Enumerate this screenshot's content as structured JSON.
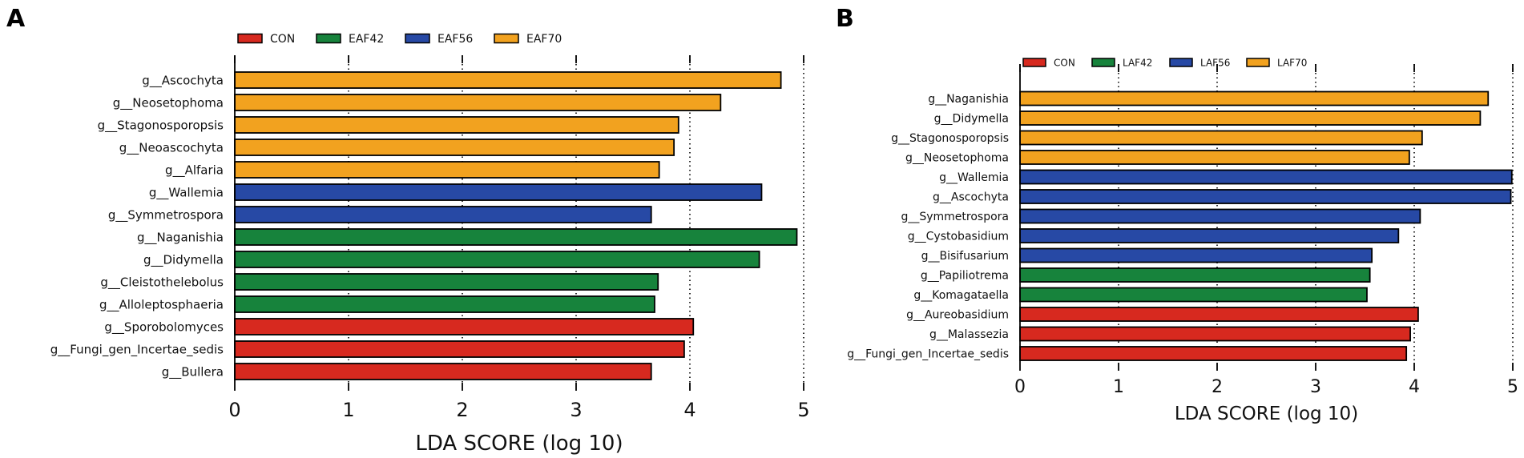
{
  "chart_data": [
    {
      "panel": "A",
      "type": "bar",
      "orientation": "horizontal",
      "xlabel": "LDA SCORE (log 10)",
      "xlim": [
        0,
        5
      ],
      "xticks": [
        0,
        1,
        2,
        3,
        4,
        5
      ],
      "grid": "vertical dotted",
      "legend": [
        {
          "name": "CON",
          "color": "#d7291f"
        },
        {
          "name": "EAF42",
          "color": "#17833c"
        },
        {
          "name": "EAF56",
          "color": "#2749a5"
        },
        {
          "name": "EAF70",
          "color": "#f2a21f"
        }
      ],
      "bars": [
        {
          "label": "g__Ascochyta",
          "value": 4.8,
          "group": "EAF70"
        },
        {
          "label": "g__Neosetophoma",
          "value": 4.27,
          "group": "EAF70"
        },
        {
          "label": "g__Stagonosporopsis",
          "value": 3.9,
          "group": "EAF70"
        },
        {
          "label": "g__Neoascochyta",
          "value": 3.86,
          "group": "EAF70"
        },
        {
          "label": "g__Alfaria",
          "value": 3.73,
          "group": "EAF70"
        },
        {
          "label": "g__Wallemia",
          "value": 4.63,
          "group": "EAF56"
        },
        {
          "label": "g__Symmetrospora",
          "value": 3.66,
          "group": "EAF56"
        },
        {
          "label": "g__Naganishia",
          "value": 4.94,
          "group": "EAF42"
        },
        {
          "label": "g__Didymella",
          "value": 4.61,
          "group": "EAF42"
        },
        {
          "label": "g__Cleistothelebolus",
          "value": 3.72,
          "group": "EAF42"
        },
        {
          "label": "g__Alloleptosphaeria",
          "value": 3.69,
          "group": "EAF42"
        },
        {
          "label": "g__Sporobolomyces",
          "value": 4.03,
          "group": "CON"
        },
        {
          "label": "g__Fungi_gen_Incertae_sedis",
          "value": 3.95,
          "group": "CON"
        },
        {
          "label": "g__Bullera",
          "value": 3.66,
          "group": "CON"
        }
      ]
    },
    {
      "panel": "B",
      "type": "bar",
      "orientation": "horizontal",
      "xlabel": "LDA SCORE (log 10)",
      "xlim": [
        0,
        5
      ],
      "xticks": [
        0,
        1,
        2,
        3,
        4,
        5
      ],
      "grid": "vertical dotted",
      "legend": [
        {
          "name": "CON",
          "color": "#d7291f"
        },
        {
          "name": "LAF42",
          "color": "#17833c"
        },
        {
          "name": "LAF56",
          "color": "#2749a5"
        },
        {
          "name": "LAF70",
          "color": "#f2a21f"
        }
      ],
      "bars": [
        {
          "label": "g__Naganishia",
          "value": 4.75,
          "group": "LAF70"
        },
        {
          "label": "g__Didymella",
          "value": 4.67,
          "group": "LAF70"
        },
        {
          "label": "g__Stagonosporopsis",
          "value": 4.08,
          "group": "LAF70"
        },
        {
          "label": "g__Neosetophoma",
          "value": 3.95,
          "group": "LAF70"
        },
        {
          "label": "g__Wallemia",
          "value": 4.99,
          "group": "LAF56"
        },
        {
          "label": "g__Ascochyta",
          "value": 4.98,
          "group": "LAF56"
        },
        {
          "label": "g__Symmetrospora",
          "value": 4.06,
          "group": "LAF56"
        },
        {
          "label": "g__Cystobasidium",
          "value": 3.84,
          "group": "LAF56"
        },
        {
          "label": "g__Bisifusarium",
          "value": 3.57,
          "group": "LAF56"
        },
        {
          "label": "g__Papiliotrema",
          "value": 3.55,
          "group": "LAF42"
        },
        {
          "label": "g__Komagataella",
          "value": 3.52,
          "group": "LAF42"
        },
        {
          "label": "g__Aureobasidium",
          "value": 4.04,
          "group": "CON"
        },
        {
          "label": "g__Malassezia",
          "value": 3.96,
          "group": "CON"
        },
        {
          "label": "g__Fungi_gen_Incertae_sedis",
          "value": 3.92,
          "group": "CON"
        }
      ]
    }
  ]
}
